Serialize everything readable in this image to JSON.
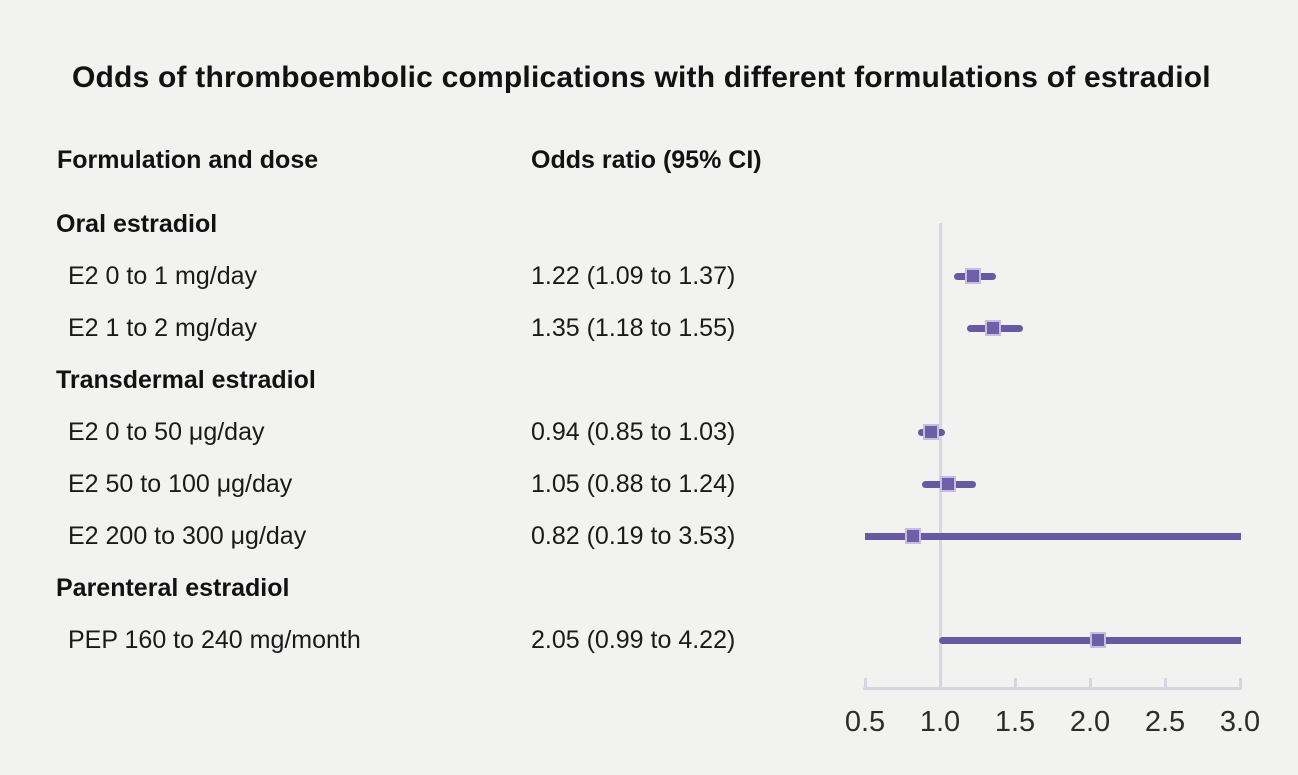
{
  "title": "Odds of thromboembolic complications with different formulations of estradiol",
  "columns": {
    "formulation": "Formulation and dose",
    "odds_ratio": "Odds ratio (95% CI)"
  },
  "colors": {
    "background": "#f2f2f1",
    "text": "#1a1a1a",
    "ci_line": "#685aa0",
    "marker_fill": "#6e5fa9",
    "marker_border": "#c6bddf",
    "reference_line": "#d4d8e1",
    "axis": "#d2d6df",
    "tick_label": "#2c2c2c"
  },
  "chart_data": {
    "type": "forest",
    "title": "Odds of thromboembolic complications with different formulations of estradiol",
    "xlabel": "",
    "xlim": [
      0.5,
      3.0
    ],
    "x_ticks": [
      0.5,
      1.0,
      1.5,
      2.0,
      2.5,
      3.0
    ],
    "x_tick_labels": [
      "0.5",
      "1.0",
      "1.5",
      "2.0",
      "2.5",
      "3.0"
    ],
    "reference_line": 1.0,
    "grid": false,
    "legend": false,
    "rows": [
      {
        "type": "group",
        "label": "Oral estradiol",
        "value_text": null,
        "or": null,
        "ci_low": null,
        "ci_high": null
      },
      {
        "type": "item",
        "label": "E2 0 to 1 mg/day",
        "value_text": "1.22 (1.09 to 1.37)",
        "or": 1.22,
        "ci_low": 1.09,
        "ci_high": 1.37
      },
      {
        "type": "item",
        "label": "E2 1 to 2 mg/day",
        "value_text": "1.35 (1.18 to 1.55)",
        "or": 1.35,
        "ci_low": 1.18,
        "ci_high": 1.55
      },
      {
        "type": "group",
        "label": "Transdermal estradiol",
        "value_text": null,
        "or": null,
        "ci_low": null,
        "ci_high": null
      },
      {
        "type": "item",
        "label": "E2 0 to 50 μg/day",
        "value_text": "0.94 (0.85 to 1.03)",
        "or": 0.94,
        "ci_low": 0.85,
        "ci_high": 1.03
      },
      {
        "type": "item",
        "label": "E2 50 to 100 μg/day",
        "value_text": "1.05 (0.88 to 1.24)",
        "or": 1.05,
        "ci_low": 0.88,
        "ci_high": 1.24
      },
      {
        "type": "item",
        "label": "E2 200 to 300 μg/day",
        "value_text": "0.82 (0.19 to 3.53)",
        "or": 0.82,
        "ci_low": 0.19,
        "ci_high": 3.53
      },
      {
        "type": "group",
        "label": "Parenteral estradiol",
        "value_text": null,
        "or": null,
        "ci_low": null,
        "ci_high": null
      },
      {
        "type": "item",
        "label": "PEP 160 to 240 mg/month",
        "value_text": "2.05 (0.99 to 4.22)",
        "or": 2.05,
        "ci_low": 0.99,
        "ci_high": 4.22
      }
    ]
  }
}
